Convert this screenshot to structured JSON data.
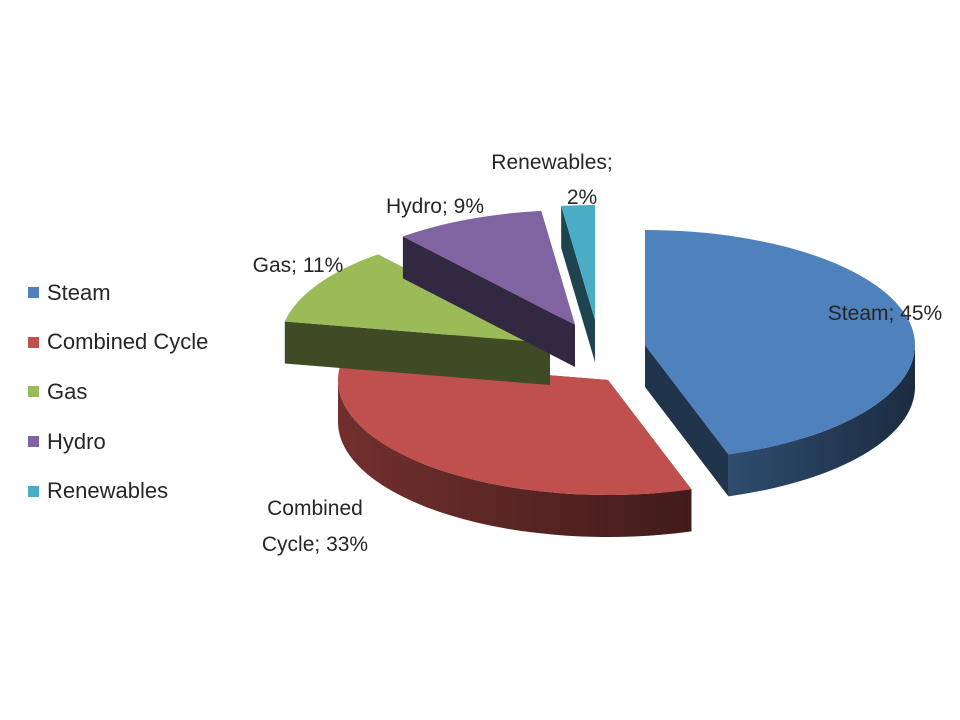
{
  "chart_data": {
    "type": "pie",
    "style": "3d-exploded",
    "categories": [
      "Steam",
      "Combined Cycle",
      "Gas",
      "Hydro",
      "Renewables"
    ],
    "values": [
      45,
      33,
      11,
      9,
      2
    ],
    "colors": [
      "#4F81BD",
      "#C0504D",
      "#9BBB59",
      "#8064A2",
      "#4BACC6"
    ],
    "data_labels": [
      [
        "Steam; 45%"
      ],
      [
        "Combined",
        "Cycle; 33%"
      ],
      [
        "Gas; 11%"
      ],
      [
        "Hydro; 9%"
      ],
      [
        "Renewables;",
        "2%"
      ]
    ],
    "legend": {
      "position": "left",
      "entries": [
        "Steam",
        "Combined Cycle",
        "Gas",
        "Hydro",
        "Renewables"
      ]
    }
  }
}
